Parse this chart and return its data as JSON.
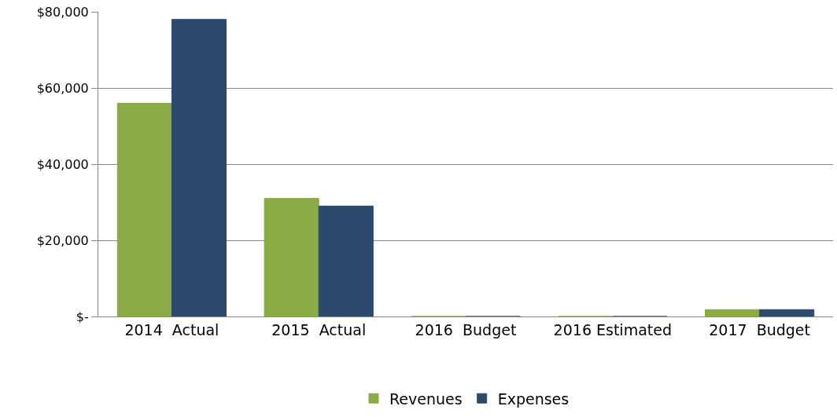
{
  "chart_data": {
    "type": "bar",
    "categories": [
      "2014  Actual",
      "2015  Actual",
      "2016  Budget",
      "2016 Estimated",
      "2017  Budget"
    ],
    "series": [
      {
        "name": "Revenues",
        "color": "#8aab45",
        "values": [
          56000,
          31000,
          0,
          0,
          1800
        ]
      },
      {
        "name": "Expenses",
        "color": "#2c4a6e",
        "values": [
          78000,
          29000,
          0,
          0,
          1800
        ]
      }
    ],
    "ylim": [
      0,
      80000
    ],
    "yticks": [
      {
        "value": 0,
        "label": "$-"
      },
      {
        "value": 20000,
        "label": "$20,000"
      },
      {
        "value": 40000,
        "label": "$40,000"
      },
      {
        "value": 60000,
        "label": "$60,000"
      },
      {
        "value": 80000,
        "label": "$80,000"
      }
    ],
    "grid": "y",
    "legend": "bottom"
  }
}
